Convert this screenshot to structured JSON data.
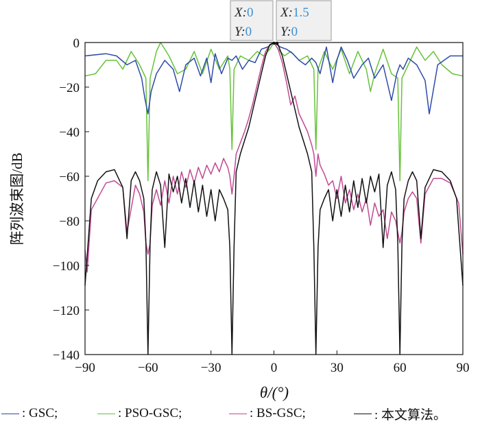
{
  "chart_data": {
    "type": "line",
    "title": "",
    "xlabel": "θ/(°)",
    "ylabel": "阵列波束图/dB",
    "xlim": [
      -90,
      90
    ],
    "ylim": [
      -140,
      0
    ],
    "xticks": [
      -90,
      -60,
      -30,
      0,
      30,
      60,
      90
    ],
    "xtick_labels": [
      "−90",
      "−60",
      "−30",
      "0",
      "30",
      "60",
      "90"
    ],
    "yticks": [
      0,
      -20,
      -40,
      -60,
      -80,
      -100,
      -120,
      -140
    ],
    "ytick_labels": [
      "0",
      "−20",
      "−40",
      "−60",
      "−80",
      "−100",
      "−120",
      "−140"
    ],
    "grid": false,
    "legend_position": "bottom",
    "series": [
      {
        "name": ": GSC;",
        "color": "#2c4aa8",
        "x": [
          -90,
          -80,
          -75,
          -70,
          -66,
          -63,
          -61.5,
          -60,
          -58.5,
          -56,
          -52,
          -48,
          -45,
          -42,
          -38,
          -35,
          -32,
          -30,
          -28,
          -25,
          -22,
          -20,
          -18,
          -15,
          -12,
          -9,
          -6,
          -3,
          0,
          3,
          6,
          9,
          12,
          15,
          18,
          20,
          22,
          25,
          28,
          30,
          32,
          35,
          38,
          42,
          45,
          48,
          52,
          56,
          58.5,
          60,
          61.5,
          64,
          68,
          72,
          74,
          78,
          84,
          90
        ],
        "y": [
          -6,
          -5,
          -6,
          -10,
          -8,
          -16,
          -25,
          -32,
          -22,
          -14,
          -8,
          -12,
          -22,
          -10,
          -7,
          -15,
          -7,
          -18,
          -5,
          -14,
          -7,
          -8,
          -6,
          -12,
          -8,
          -9,
          -3,
          -2,
          0,
          -2,
          -3,
          -5,
          -8,
          -10,
          -7,
          -9,
          -14,
          -2,
          -18,
          -8,
          -2,
          -8,
          -16,
          -10,
          -7,
          -16,
          -10,
          -26,
          -14,
          -10,
          -12,
          -7,
          -10,
          -17,
          -32,
          -10,
          -6,
          -6
        ]
      },
      {
        "name": ": PSO-GSC;",
        "color": "#66c23a",
        "x": [
          -90,
          -85,
          -80,
          -75,
          -72,
          -68,
          -64,
          -61,
          -60,
          -59,
          -56,
          -54,
          -50,
          -46,
          -42,
          -38,
          -34,
          -30,
          -26,
          -22,
          -21,
          -20,
          -19,
          -16,
          -12,
          -8,
          -5,
          -2,
          0,
          2,
          5,
          8,
          12,
          16,
          19,
          20,
          21,
          24,
          28,
          32,
          36,
          40,
          44,
          46,
          48,
          52,
          56,
          59,
          60,
          61,
          64,
          68,
          72,
          76,
          80,
          85,
          90
        ],
        "y": [
          -15,
          -14,
          -8,
          -8,
          -12,
          -4,
          -10,
          -16,
          -62,
          -16,
          -4,
          0,
          -6,
          -14,
          -12,
          -4,
          -14,
          -3,
          -12,
          -6,
          -12,
          -48,
          -12,
          -6,
          -8,
          -4,
          -6,
          -3,
          0,
          -3,
          -6,
          -4,
          -8,
          -6,
          -12,
          -48,
          -12,
          -4,
          -12,
          -3,
          -14,
          -4,
          -12,
          -22,
          -14,
          -3,
          -14,
          -16,
          -62,
          -16,
          -10,
          -2,
          -8,
          -4,
          -10,
          -14,
          -15
        ]
      },
      {
        "name": ": BS-GSC;",
        "color": "#c04a93",
        "x": [
          -90,
          -89,
          -87,
          -80,
          -76,
          -72,
          -70,
          -66,
          -64,
          -62,
          -61,
          -60,
          -59,
          -58,
          -56,
          -54,
          -52,
          -50,
          -48,
          -46,
          -44,
          -42,
          -40,
          -38,
          -36,
          -34,
          -32,
          -30,
          -28,
          -26,
          -24,
          -22,
          -21,
          -20,
          -19,
          -18,
          -16,
          -14,
          -12,
          -10,
          -8,
          -6,
          -4,
          -2,
          0,
          2,
          4,
          6,
          8,
          10,
          12,
          14,
          16,
          18,
          19,
          20,
          21,
          22,
          24,
          26,
          28,
          30,
          32,
          34,
          36,
          38,
          40,
          42,
          44,
          46,
          48,
          50,
          52,
          54,
          56,
          58,
          59,
          60,
          61,
          62,
          64,
          66,
          68,
          70,
          72,
          76,
          80,
          84,
          88,
          90
        ],
        "y": [
          -93,
          -103,
          -75,
          -63,
          -62,
          -65,
          -85,
          -64,
          -68,
          -76,
          -90,
          -95,
          -90,
          -73,
          -66,
          -73,
          -62,
          -72,
          -60,
          -68,
          -58,
          -65,
          -57,
          -63,
          -56,
          -61,
          -55,
          -59,
          -54,
          -58,
          -52,
          -56,
          -60,
          -68,
          -60,
          -50,
          -45,
          -40,
          -34,
          -27,
          -19,
          -11,
          -4,
          -1,
          0,
          -3,
          -9,
          -18,
          -28,
          -24,
          -32,
          -36,
          -40,
          -46,
          -50,
          -60,
          -50,
          -55,
          -59,
          -64,
          -62,
          -70,
          -60,
          -72,
          -66,
          -75,
          -68,
          -76,
          -70,
          -82,
          -72,
          -78,
          -75,
          -88,
          -76,
          -80,
          -85,
          -90,
          -85,
          -76,
          -70,
          -67,
          -70,
          -90,
          -68,
          -61,
          -61,
          -63,
          -72,
          -95
        ]
      },
      {
        "name": ": 本文算法。",
        "color": "#111111",
        "x": [
          -90,
          -87,
          -84,
          -80,
          -76,
          -72,
          -70,
          -68,
          -66,
          -64,
          -62,
          -61,
          -60,
          -59,
          -58,
          -56,
          -54,
          -52,
          -50,
          -48,
          -46,
          -44,
          -42,
          -40,
          -38,
          -36,
          -34,
          -32,
          -30,
          -28,
          -26,
          -24,
          -22,
          -21,
          -20,
          -19,
          -18,
          -16,
          -14,
          -12,
          -10,
          -8,
          -6,
          -4,
          -2,
          0,
          2,
          4,
          6,
          8,
          10,
          12,
          14,
          16,
          18,
          19,
          20,
          21,
          22,
          24,
          26,
          28,
          30,
          32,
          34,
          36,
          38,
          40,
          42,
          44,
          46,
          48,
          50,
          52,
          54,
          56,
          58,
          59,
          60,
          61,
          62,
          64,
          66,
          68,
          70,
          72,
          76,
          80,
          84,
          87,
          90
        ],
        "y": [
          -109,
          -70,
          -62,
          -58,
          -57,
          -65,
          -88,
          -62,
          -58,
          -62,
          -70,
          -90,
          -140,
          -90,
          -66,
          -58,
          -64,
          -92,
          -59,
          -67,
          -60,
          -72,
          -61,
          -74,
          -62,
          -76,
          -64,
          -78,
          -66,
          -80,
          -66,
          -70,
          -75,
          -92,
          -140,
          -92,
          -58,
          -50,
          -44,
          -38,
          -30,
          -22,
          -14,
          -6,
          -1,
          0,
          -1,
          -6,
          -14,
          -22,
          -30,
          -38,
          -44,
          -50,
          -58,
          -92,
          -140,
          -92,
          -75,
          -70,
          -66,
          -80,
          -66,
          -78,
          -64,
          -76,
          -62,
          -74,
          -61,
          -72,
          -60,
          -67,
          -59,
          -92,
          -64,
          -58,
          -66,
          -90,
          -140,
          -90,
          -70,
          -62,
          -58,
          -62,
          -88,
          -65,
          -57,
          -58,
          -62,
          -70,
          -109
        ]
      }
    ],
    "datatips": [
      {
        "x_key": "X",
        "x_val": "0",
        "y_key": "Y",
        "y_val": "0"
      },
      {
        "x_key": "X",
        "x_val": "1.5",
        "y_key": "Y",
        "y_val": "0"
      }
    ]
  }
}
